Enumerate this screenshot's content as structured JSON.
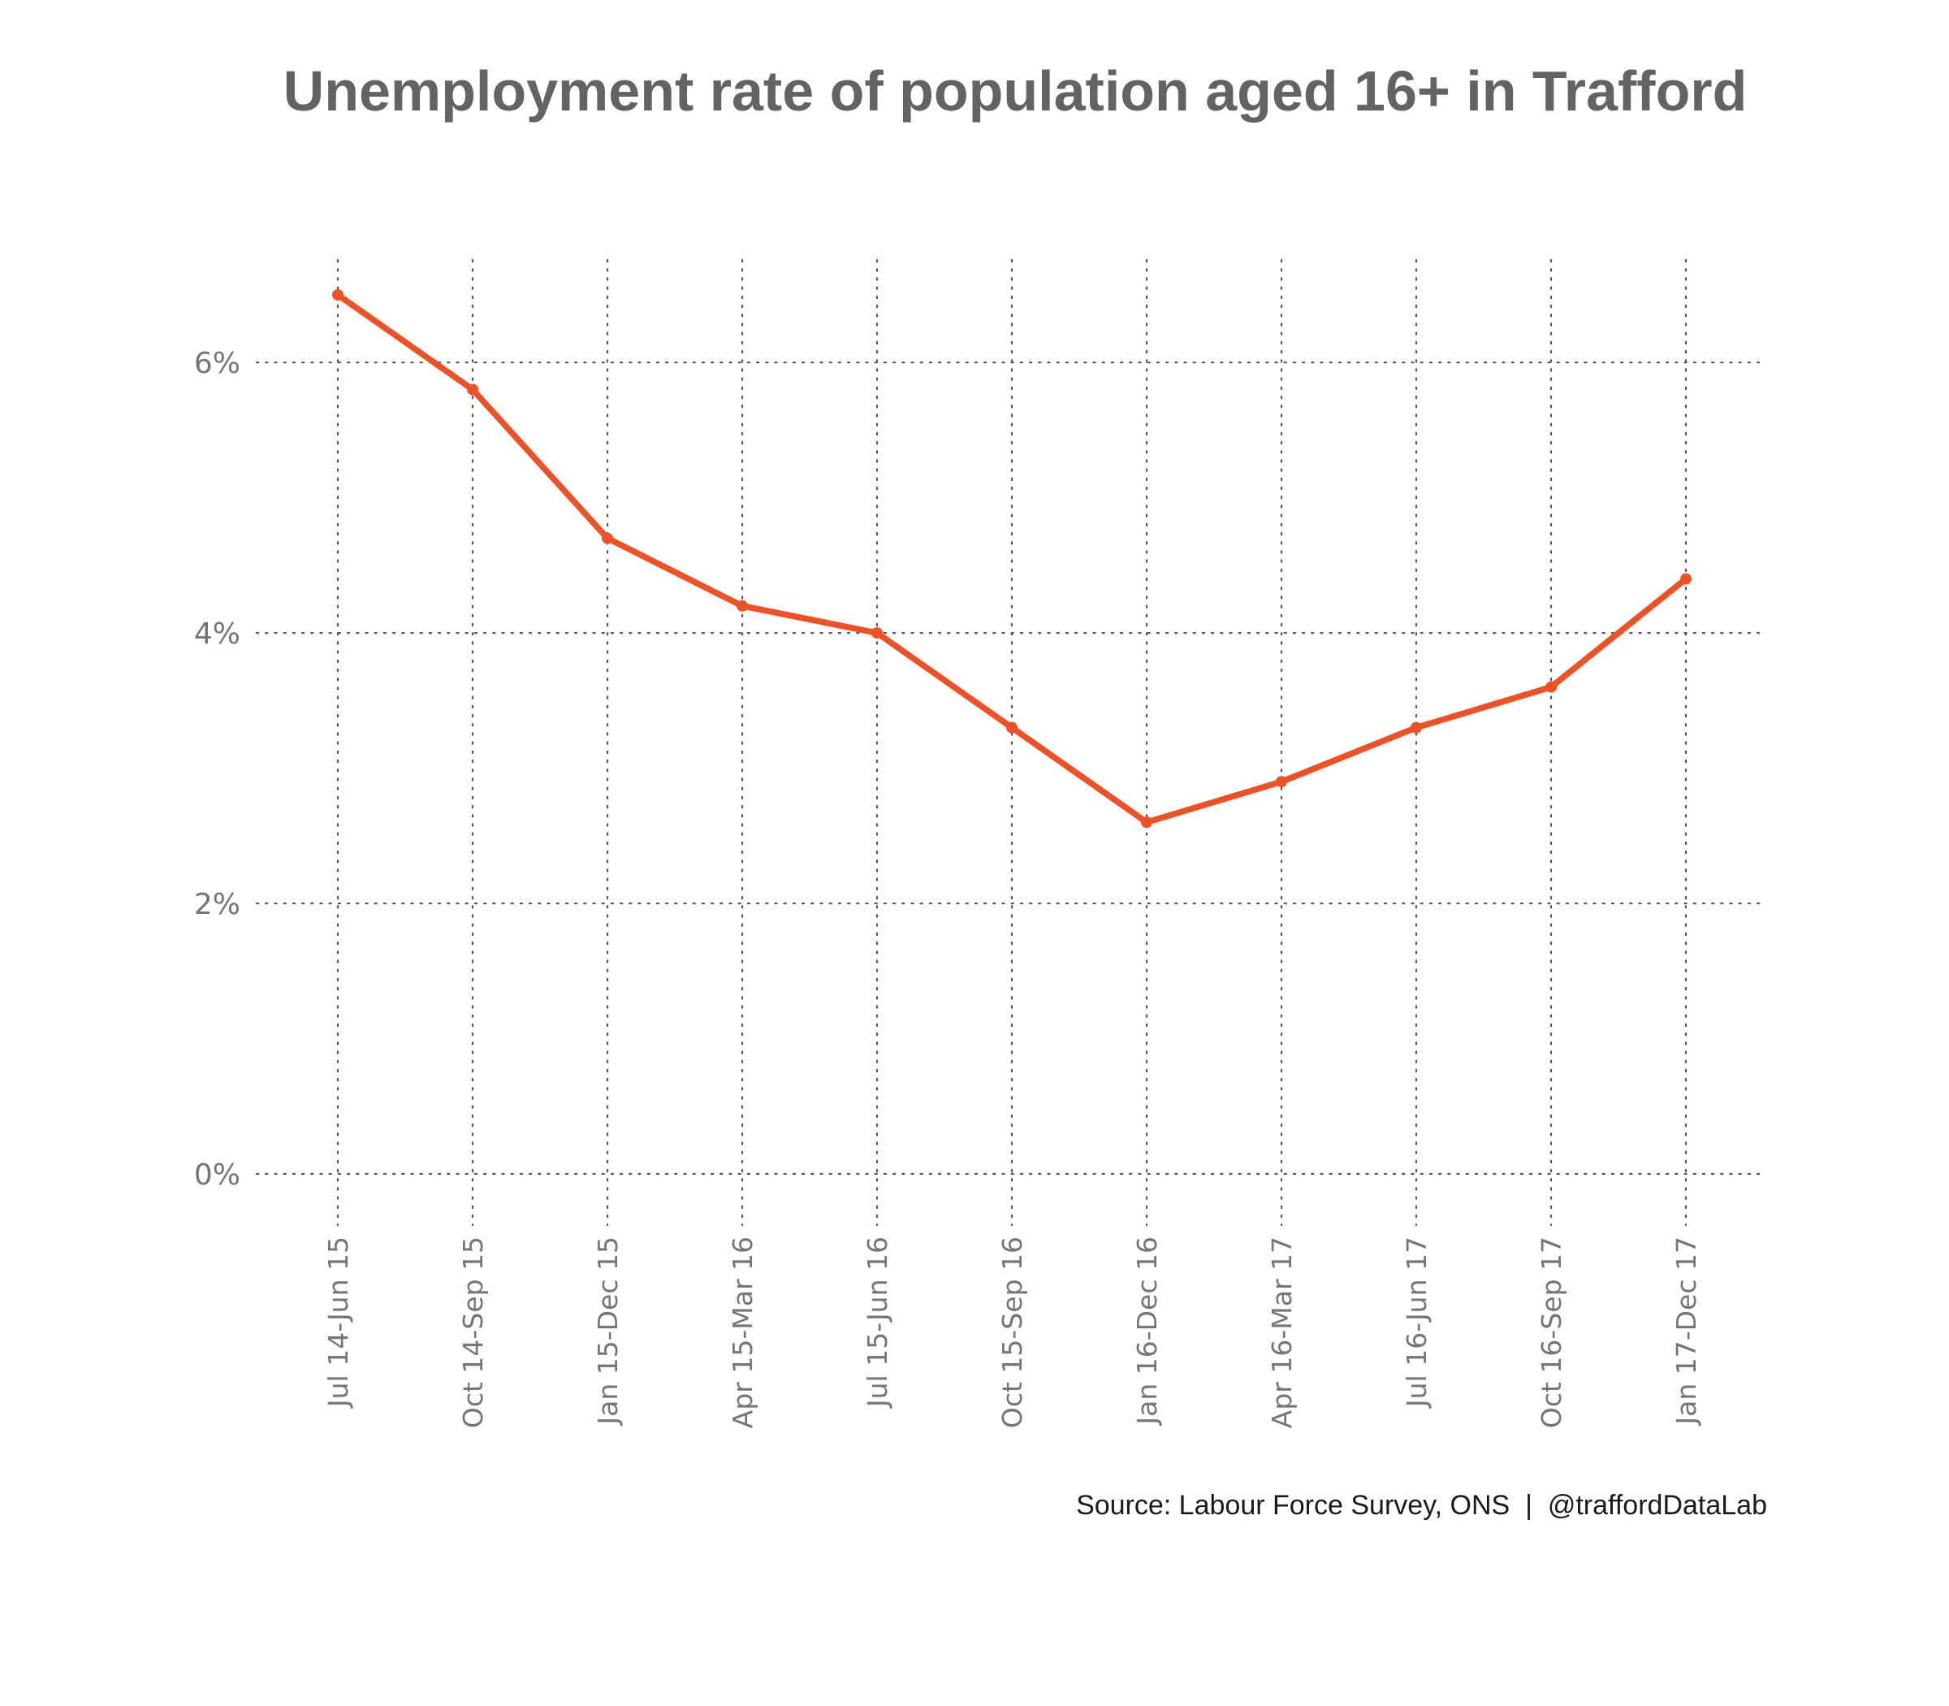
{
  "chart_data": {
    "type": "line",
    "title": "Unemployment rate of population aged 16+ in Trafford",
    "caption": "Source: Labour Force Survey, ONS  |  @traffordDataLab",
    "xlabel": "",
    "ylabel": "",
    "categories": [
      "Jul 14-Jun 15",
      "Oct 14-Sep 15",
      "Jan 15-Dec 15",
      "Apr 15-Mar 16",
      "Jul 15-Jun 16",
      "Oct 15-Sep 16",
      "Jan 16-Dec 16",
      "Apr 16-Mar 17",
      "Jul 16-Jun 17",
      "Oct 16-Sep 17",
      "Jan 17-Dec 17"
    ],
    "series": [
      {
        "values": [
          6.5,
          5.8,
          4.7,
          4.2,
          4.0,
          3.3,
          2.6,
          2.9,
          3.3,
          3.6,
          4.4
        ]
      }
    ],
    "ylim": [
      0,
      6.8
    ],
    "yticks": [
      0,
      2,
      4,
      6
    ],
    "ytick_labels": [
      "0%",
      "2%",
      "4%",
      "6%"
    ],
    "grid": true,
    "grid_style": "dotted",
    "line_color": "#f05023",
    "text_color": "#757575",
    "title_color": "#636363"
  }
}
